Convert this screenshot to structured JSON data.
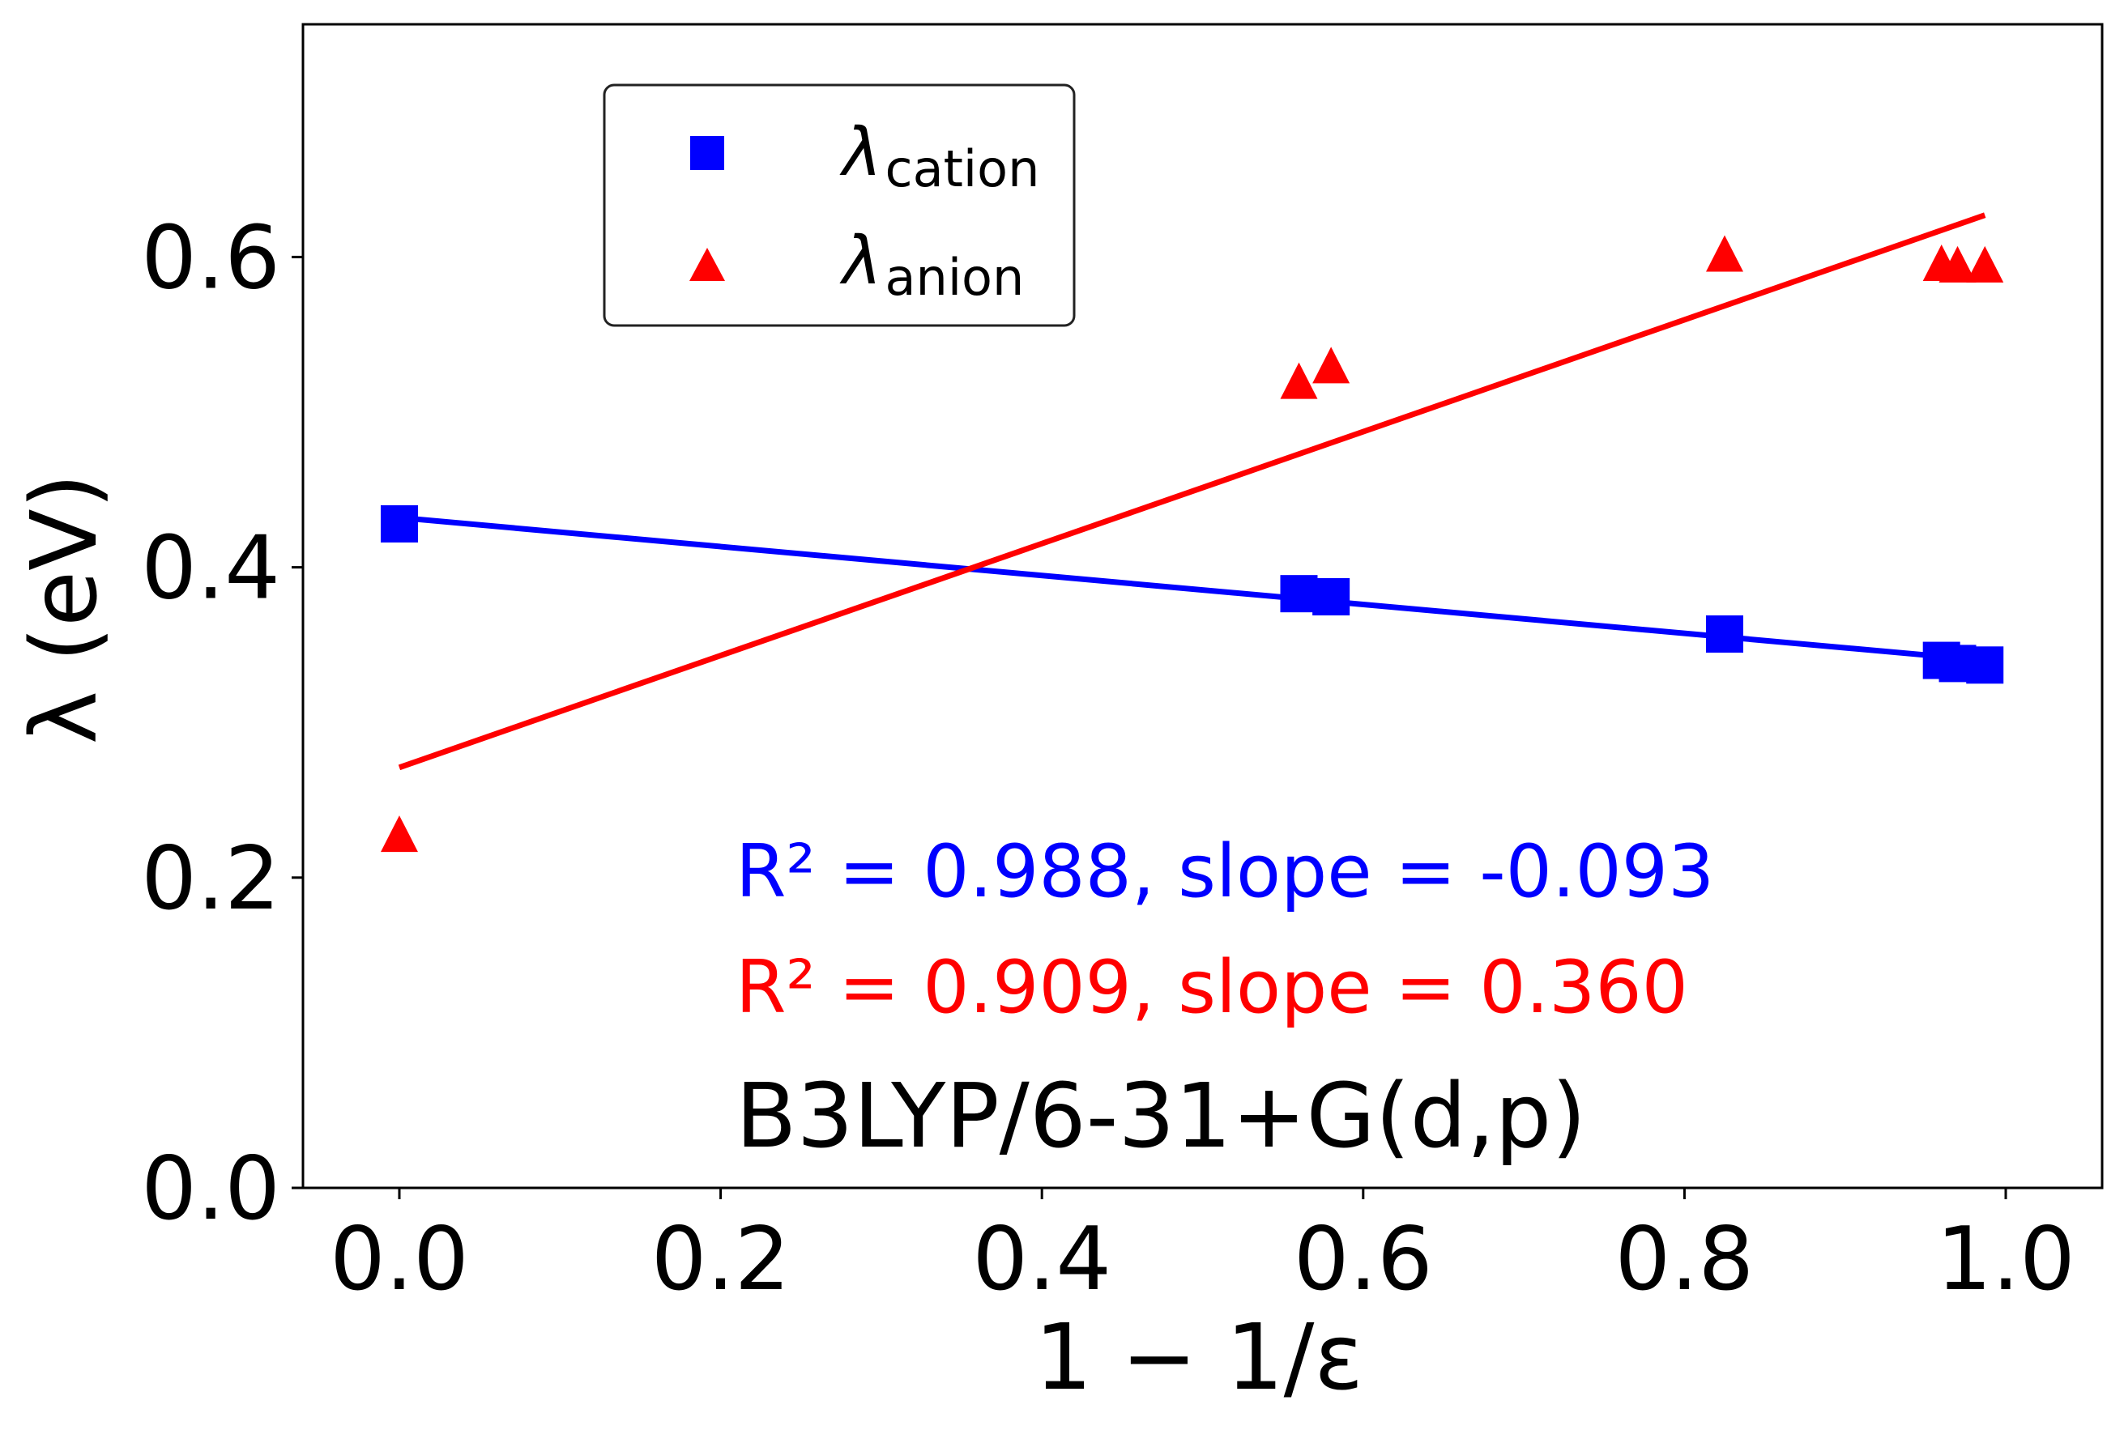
{
  "chart_data": {
    "type": "scatter",
    "title": "",
    "xlabel": "1 − 1/ε",
    "ylabel": "λ (eV)",
    "xlim": [
      -0.06,
      1.06
    ],
    "ylim": [
      0.0,
      0.75
    ],
    "xticks": [
      "0.0",
      "0.2",
      "0.4",
      "0.6",
      "0.8",
      "1.0"
    ],
    "yticks": [
      "0.0",
      "0.2",
      "0.4",
      "0.6"
    ],
    "grid": false,
    "legend_position": "top-left",
    "series": [
      {
        "name": "λcation",
        "legend_main": "λ",
        "legend_sub": "cation",
        "marker": "square",
        "color": "#0000ff",
        "x": [
          0.0,
          0.56,
          0.58,
          0.825,
          0.96,
          0.97,
          0.987
        ],
        "y": [
          0.428,
          0.383,
          0.381,
          0.357,
          0.34,
          0.338,
          0.337
        ],
        "fit": {
          "x": [
            0.0,
            0.987
          ],
          "y": [
            0.432,
            0.34
          ]
        }
      },
      {
        "name": "λanion",
        "legend_main": "λ",
        "legend_sub": "anion",
        "marker": "triangle",
        "color": "#ff0000",
        "x": [
          0.0,
          0.56,
          0.58,
          0.825,
          0.96,
          0.97,
          0.987
        ],
        "y": [
          0.227,
          0.519,
          0.529,
          0.601,
          0.595,
          0.594,
          0.594
        ],
        "fit": {
          "x": [
            0.0,
            0.987
          ],
          "y": [
            0.271,
            0.627
          ]
        }
      }
    ],
    "annotations": {
      "cation_fit": "R² = 0.988, slope = -0.093",
      "anion_fit": "R² = 0.909, slope = 0.360",
      "method": "B3LYP/6-31+G(d,p)"
    }
  }
}
